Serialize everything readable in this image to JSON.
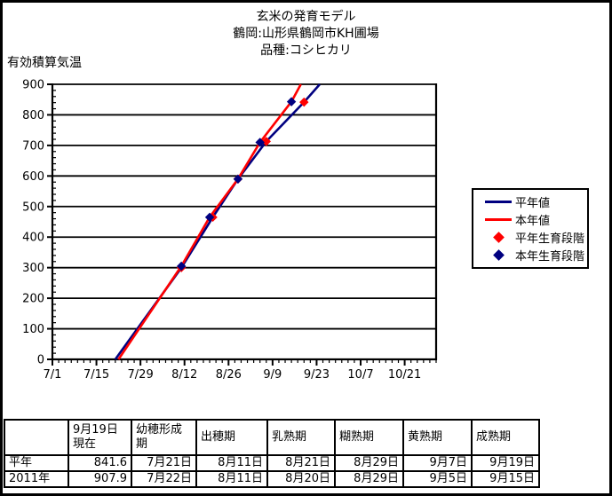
{
  "header": {
    "title": "玄米の発育モデル",
    "subtitle": "鶴岡:山形県鶴岡市KH圃場",
    "variety": "品種:コシヒカリ",
    "y_axis_title": "有効積算気温"
  },
  "colors": {
    "normal_year_line": "#000080",
    "this_year_line": "#ff0000",
    "normal_year_marker": "#ff0000",
    "this_year_marker": "#000080",
    "axis": "#000000"
  },
  "chart_data": {
    "type": "line",
    "title": "玄米の発育モデル",
    "subtitle": "鶴岡:山形県鶴岡市KH圃場",
    "variety": "品種:コシヒカリ",
    "ylabel": "有効積算気温",
    "ylim": [
      0,
      900
    ],
    "y_tick_step": 100,
    "y_minor_step": 20,
    "x_domain": [
      "7/1",
      "10/31"
    ],
    "x_tick_labels": [
      "7/1",
      "7/15",
      "7/29",
      "8/12",
      "8/26",
      "9/9",
      "9/23",
      "10/7",
      "10/21"
    ],
    "x_minor_step_days": 2,
    "grid": "horizontal",
    "legend_position": "right",
    "series": [
      {
        "name": "平年値",
        "kind": "line",
        "color": "#000080",
        "points": [
          [
            "7/21",
            0
          ],
          [
            "8/11",
            300
          ],
          [
            "8/21",
            465
          ],
          [
            "8/29",
            590
          ],
          [
            "9/7",
            713
          ],
          [
            "9/19",
            841.6
          ],
          [
            "9/24",
            900
          ]
        ]
      },
      {
        "name": "本年値",
        "kind": "line",
        "color": "#ff0000",
        "points": [
          [
            "7/22",
            0
          ],
          [
            "8/11",
            305
          ],
          [
            "8/20",
            465
          ],
          [
            "8/29",
            590
          ],
          [
            "9/5",
            710
          ],
          [
            "9/15",
            843
          ],
          [
            "9/18",
            900
          ]
        ]
      },
      {
        "name": "平年生育段階",
        "kind": "scatter",
        "marker": "diamond",
        "color": "#ff0000",
        "points": [
          [
            "8/11",
            300
          ],
          [
            "8/21",
            465
          ],
          [
            "8/29",
            590
          ],
          [
            "9/7",
            713
          ],
          [
            "9/19",
            841.6
          ]
        ]
      },
      {
        "name": "本年生育段階",
        "kind": "scatter",
        "marker": "diamond",
        "color": "#000080",
        "points": [
          [
            "8/11",
            305
          ],
          [
            "8/20",
            465
          ],
          [
            "8/29",
            590
          ],
          [
            "9/5",
            710
          ],
          [
            "9/15",
            843
          ]
        ]
      }
    ]
  },
  "legend": {
    "items": [
      {
        "label": "平年値",
        "swatch": "line",
        "color": "#000080"
      },
      {
        "label": "本年値",
        "swatch": "line",
        "color": "#ff0000"
      },
      {
        "label": "平年生育段階",
        "swatch": "diamond",
        "color": "#ff0000"
      },
      {
        "label": "本年生育段階",
        "swatch": "diamond",
        "color": "#000080"
      }
    ]
  },
  "table": {
    "headers": [
      "",
      "9月19日\n現在",
      "幼穂形成\n期",
      "出穂期",
      "乳熟期",
      "糊熟期",
      "黄熟期",
      "成熟期"
    ],
    "rows": [
      [
        "平年",
        "841.6",
        "7月21日",
        "8月11日",
        "8月21日",
        "8月29日",
        "9月7日",
        "9月19日"
      ],
      [
        "2011年",
        "907.9",
        "7月22日",
        "8月11日",
        "8月20日",
        "8月29日",
        "9月5日",
        "9月15日"
      ]
    ]
  }
}
